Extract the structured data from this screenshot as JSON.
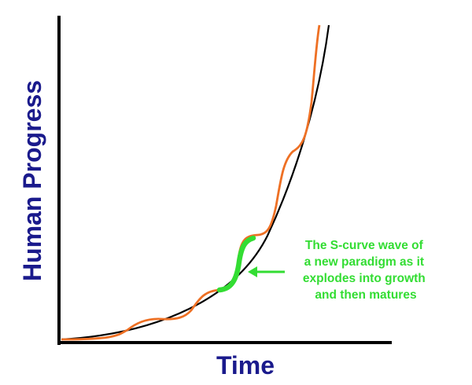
{
  "diagram": {
    "y_axis_title": "Human Progress",
    "x_axis_title": "Time",
    "annotation_lines": [
      "The S-curve wave of",
      "a new paradigm as it",
      "explodes into growth",
      "and then matures"
    ],
    "colors": {
      "axis_title": "#1a1a8c",
      "axes": "#000000",
      "exponential_curve": "#000000",
      "wavy_curve": "#ee7024",
      "highlighted_s_curve": "#33dd33",
      "annotation": "#33dd33"
    }
  }
}
